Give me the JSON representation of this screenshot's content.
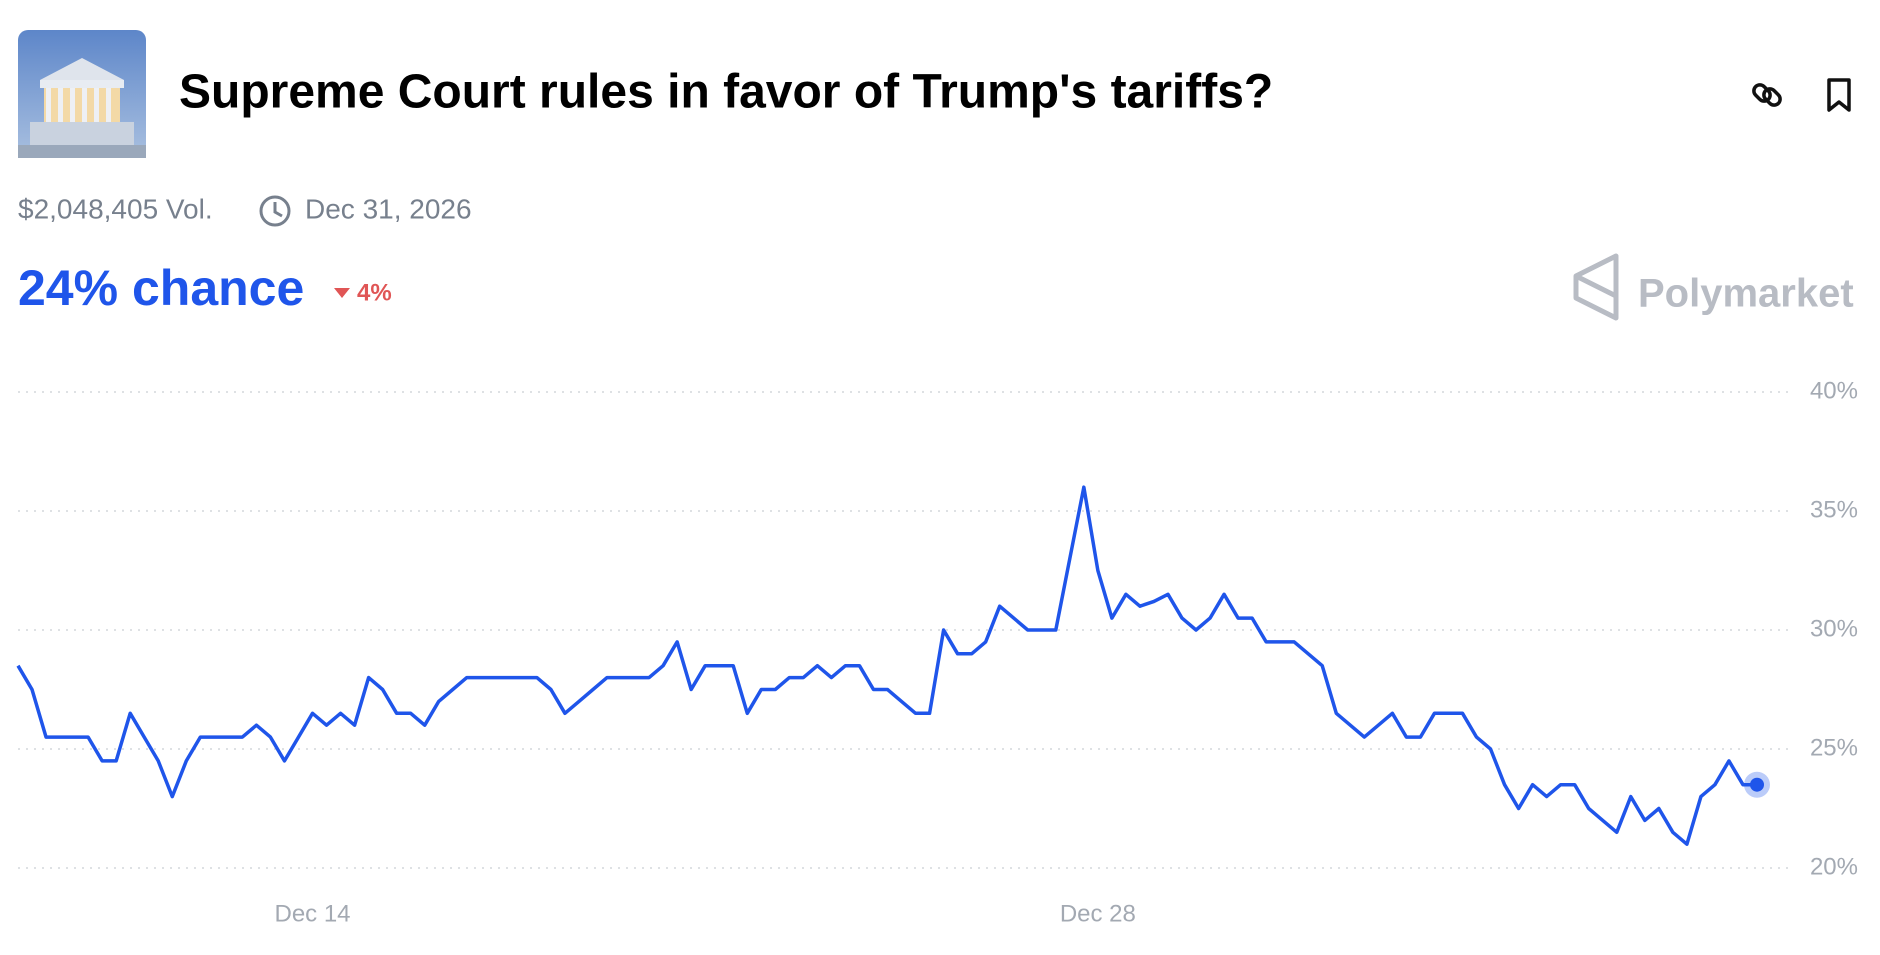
{
  "header": {
    "title": "Supreme Court rules in favor of Trump's tariffs?",
    "volume": "$2,048,405 Vol.",
    "end_date": "Dec 31, 2026",
    "chance": "24% chance",
    "change": "4%",
    "brand": "Polymarket"
  },
  "chart_data": {
    "type": "line",
    "color": "#1f55ea",
    "xlim": [
      0,
      124
    ],
    "xticks": [
      {
        "value": 21,
        "label": "Dec 14"
      },
      {
        "value": 77,
        "label": "Dec 28"
      }
    ],
    "ylim": [
      20,
      40
    ],
    "yticks": [
      {
        "value": 20,
        "label": "20%"
      },
      {
        "value": 25,
        "label": "25%"
      },
      {
        "value": 30,
        "label": "30%"
      },
      {
        "value": 35,
        "label": "35%"
      },
      {
        "value": 40,
        "label": "40%"
      }
    ],
    "grid": true,
    "values": [
      28.5,
      27.5,
      25.5,
      25.5,
      25.5,
      25.5,
      24.5,
      24.5,
      26.5,
      25.5,
      24.5,
      23,
      24.5,
      25.5,
      25.5,
      25.5,
      25.5,
      26,
      25.5,
      24.5,
      25.5,
      26.5,
      26,
      26.5,
      26,
      28,
      27.5,
      26.5,
      26.5,
      26,
      27,
      27.5,
      28,
      28,
      28,
      28,
      28,
      28,
      27.5,
      26.5,
      27,
      27.5,
      28,
      28,
      28,
      28,
      28.5,
      29.5,
      27.5,
      28.5,
      28.5,
      28.5,
      26.5,
      27.5,
      27.5,
      28,
      28,
      28.5,
      28,
      28.5,
      28.5,
      27.5,
      27.5,
      27,
      26.5,
      26.5,
      30,
      29,
      29,
      29.5,
      31,
      30.5,
      30,
      30,
      30,
      33,
      36,
      32.5,
      30.5,
      31.5,
      31,
      31.2,
      31.5,
      30.5,
      30,
      30.5,
      31.5,
      30.5,
      30.5,
      29.5,
      29.5,
      29.5,
      29,
      28.5,
      26.5,
      26,
      25.5,
      26,
      26.5,
      25.5,
      25.5,
      26.5,
      26.5,
      26.5,
      25.5,
      25,
      23.5,
      22.5,
      23.5,
      23,
      23.5,
      23.5,
      22.5,
      22,
      21.5,
      23,
      22,
      22.5,
      21.5,
      21,
      23,
      23.5,
      24.5,
      23.5,
      23.5
    ]
  }
}
